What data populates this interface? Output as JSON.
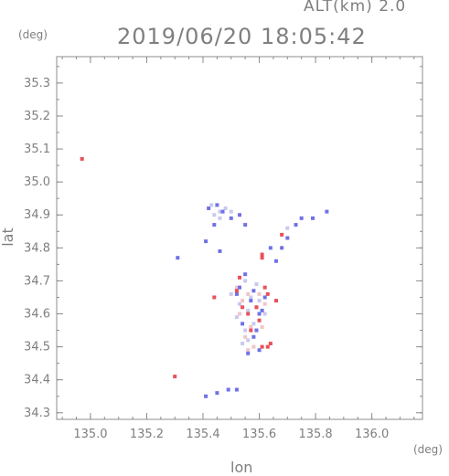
{
  "header": {
    "alt_label": "ALT(km) 2.0",
    "timestamp": "2019/06/20 18:05:42",
    "y_unit": "(deg)",
    "x_unit": "(deg)"
  },
  "chart_data": {
    "type": "scatter",
    "xlabel": "lon",
    "ylabel": "lat",
    "xlim": [
      134.88,
      136.18
    ],
    "ylim": [
      34.28,
      35.38
    ],
    "x_ticks": [
      "135.0",
      "135.2",
      "135.4",
      "135.6",
      "135.8",
      "136.0"
    ],
    "y_ticks": [
      "34.3",
      "34.4",
      "34.5",
      "34.6",
      "34.7",
      "34.8",
      "34.9",
      "35.0",
      "35.1",
      "35.2",
      "35.3"
    ],
    "grid": false,
    "series": [
      {
        "color": "#e8505a",
        "points": [
          [
            134.97,
            35.07
          ],
          [
            135.3,
            34.41
          ],
          [
            135.61,
            34.78
          ],
          [
            135.61,
            34.77
          ],
          [
            135.61,
            34.5
          ],
          [
            135.63,
            34.5
          ],
          [
            135.64,
            34.51
          ],
          [
            135.59,
            34.62
          ],
          [
            135.63,
            34.66
          ],
          [
            135.52,
            34.67
          ],
          [
            135.44,
            34.65
          ],
          [
            135.57,
            34.55
          ],
          [
            135.54,
            34.62
          ],
          [
            135.66,
            34.64
          ],
          [
            135.6,
            34.58
          ],
          [
            135.53,
            34.71
          ],
          [
            135.68,
            34.84
          ],
          [
            135.56,
            34.6
          ],
          [
            135.62,
            34.68
          ]
        ]
      },
      {
        "color": "#6f72e6",
        "points": [
          [
            135.45,
            34.93
          ],
          [
            135.47,
            34.91
          ],
          [
            135.5,
            34.89
          ],
          [
            135.42,
            34.92
          ],
          [
            135.44,
            34.87
          ],
          [
            135.55,
            34.87
          ],
          [
            135.41,
            34.82
          ],
          [
            135.53,
            34.9
          ],
          [
            135.75,
            34.89
          ],
          [
            135.73,
            34.87
          ],
          [
            135.79,
            34.89
          ],
          [
            135.84,
            34.91
          ],
          [
            135.68,
            34.8
          ],
          [
            135.66,
            34.76
          ],
          [
            135.7,
            34.83
          ],
          [
            135.64,
            34.8
          ],
          [
            135.55,
            34.72
          ],
          [
            135.58,
            34.67
          ],
          [
            135.52,
            34.66
          ],
          [
            135.57,
            34.64
          ],
          [
            135.61,
            34.61
          ],
          [
            135.54,
            34.57
          ],
          [
            135.58,
            34.53
          ],
          [
            135.59,
            34.55
          ],
          [
            135.6,
            34.49
          ],
          [
            135.56,
            34.48
          ],
          [
            135.53,
            34.68
          ],
          [
            135.62,
            34.65
          ],
          [
            135.41,
            34.35
          ],
          [
            135.45,
            34.36
          ],
          [
            135.49,
            34.37
          ],
          [
            135.52,
            34.37
          ],
          [
            135.31,
            34.77
          ],
          [
            135.46,
            34.79
          ],
          [
            135.6,
            34.6
          ]
        ]
      },
      {
        "color": "#c9c9ee",
        "points": [
          [
            135.43,
            34.93
          ],
          [
            135.46,
            34.91
          ],
          [
            135.48,
            34.92
          ],
          [
            135.44,
            34.9
          ],
          [
            135.5,
            34.91
          ],
          [
            135.55,
            34.7
          ],
          [
            135.53,
            34.63
          ],
          [
            135.56,
            34.61
          ],
          [
            135.55,
            34.55
          ],
          [
            135.58,
            34.57
          ],
          [
            135.54,
            34.51
          ],
          [
            135.57,
            34.65
          ],
          [
            135.6,
            34.64
          ],
          [
            135.52,
            34.59
          ],
          [
            135.56,
            34.52
          ],
          [
            135.59,
            34.69
          ],
          [
            135.5,
            34.66
          ],
          [
            135.62,
            34.6
          ],
          [
            135.7,
            34.86
          ],
          [
            135.46,
            34.89
          ]
        ]
      },
      {
        "color": "#f2c4c8",
        "points": [
          [
            135.57,
            34.56
          ],
          [
            135.55,
            34.53
          ],
          [
            135.59,
            34.62
          ],
          [
            135.53,
            34.6
          ],
          [
            135.58,
            34.5
          ],
          [
            135.6,
            34.66
          ],
          [
            135.52,
            34.68
          ],
          [
            135.56,
            34.66
          ],
          [
            135.62,
            34.63
          ],
          [
            135.54,
            34.64
          ],
          [
            135.61,
            34.56
          ],
          [
            135.56,
            34.49
          ]
        ]
      }
    ]
  }
}
